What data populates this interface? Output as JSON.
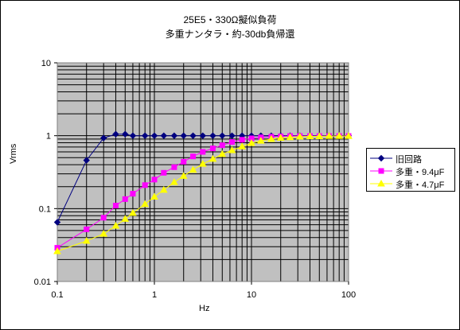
{
  "chart_data": {
    "type": "line",
    "title_lines": [
      "25E5・330Ω擬似負荷",
      "多重ナンタラ・約-30db負帰還"
    ],
    "xlabel": "Hz",
    "ylabel": "Vrms",
    "x_scale": "log",
    "y_scale": "log",
    "xlim": [
      0.1,
      100
    ],
    "ylim": [
      0.01,
      10
    ],
    "x_ticks": [
      "0.1",
      "1",
      "10",
      "100"
    ],
    "y_ticks": [
      "0.01",
      "0.1",
      "1",
      "10"
    ],
    "grid": true,
    "plot_background": "#c0c0c0",
    "legend_position": "right",
    "series": [
      {
        "name": "旧回路",
        "color": "#000080",
        "marker": "diamond",
        "points": [
          [
            0.1,
            0.065
          ],
          [
            0.2,
            0.46
          ],
          [
            0.3,
            0.93
          ],
          [
            0.4,
            1.05
          ],
          [
            0.5,
            1.05
          ],
          [
            0.6,
            1.0
          ],
          [
            0.8,
            1.0
          ],
          [
            1.0,
            1.0
          ],
          [
            1.25,
            1.0
          ],
          [
            1.6,
            1.0
          ],
          [
            2.0,
            1.0
          ],
          [
            2.5,
            1.0
          ],
          [
            3.15,
            1.0
          ],
          [
            4.0,
            1.0
          ],
          [
            5.0,
            1.0
          ],
          [
            6.3,
            1.0
          ],
          [
            8.0,
            1.0
          ],
          [
            10,
            1.0
          ],
          [
            12.5,
            1.0
          ],
          [
            16,
            1.0
          ],
          [
            20,
            1.0
          ],
          [
            25,
            1.0
          ],
          [
            31.5,
            1.0
          ],
          [
            40,
            1.0
          ],
          [
            50,
            1.0
          ],
          [
            63,
            1.0
          ],
          [
            80,
            1.0
          ],
          [
            100,
            1.0
          ]
        ]
      },
      {
        "name": "多重・9.4μF",
        "color": "#ff00ff",
        "marker": "square",
        "points": [
          [
            0.1,
            0.029
          ],
          [
            0.2,
            0.052
          ],
          [
            0.3,
            0.075
          ],
          [
            0.4,
            0.11
          ],
          [
            0.5,
            0.135
          ],
          [
            0.6,
            0.16
          ],
          [
            0.8,
            0.21
          ],
          [
            1.0,
            0.25
          ],
          [
            1.25,
            0.31
          ],
          [
            1.6,
            0.37
          ],
          [
            2.0,
            0.44
          ],
          [
            2.5,
            0.52
          ],
          [
            3.15,
            0.6
          ],
          [
            4.0,
            0.67
          ],
          [
            5.0,
            0.74
          ],
          [
            6.3,
            0.82
          ],
          [
            8.0,
            0.88
          ],
          [
            10,
            0.92
          ],
          [
            12.5,
            0.95
          ],
          [
            16,
            0.97
          ],
          [
            20,
            0.98
          ],
          [
            25,
            0.99
          ],
          [
            31.5,
            0.99
          ],
          [
            40,
            0.99
          ],
          [
            50,
            0.99
          ],
          [
            63,
            0.99
          ],
          [
            80,
            0.99
          ],
          [
            100,
            0.99
          ]
        ]
      },
      {
        "name": "多重・4.7μF",
        "color": "#ffff00",
        "marker": "triangle",
        "points": [
          [
            0.1,
            0.026
          ],
          [
            0.2,
            0.036
          ],
          [
            0.3,
            0.045
          ],
          [
            0.4,
            0.058
          ],
          [
            0.5,
            0.072
          ],
          [
            0.6,
            0.087
          ],
          [
            0.8,
            0.115
          ],
          [
            1.0,
            0.145
          ],
          [
            1.25,
            0.18
          ],
          [
            1.6,
            0.23
          ],
          [
            2.0,
            0.28
          ],
          [
            2.5,
            0.34
          ],
          [
            3.15,
            0.41
          ],
          [
            4.0,
            0.48
          ],
          [
            5.0,
            0.56
          ],
          [
            6.3,
            0.63
          ],
          [
            8.0,
            0.71
          ],
          [
            10,
            0.79
          ],
          [
            12.5,
            0.85
          ],
          [
            16,
            0.9
          ],
          [
            20,
            0.93
          ],
          [
            25,
            0.95
          ],
          [
            31.5,
            0.97
          ],
          [
            40,
            0.98
          ],
          [
            50,
            0.98
          ],
          [
            63,
            0.99
          ],
          [
            80,
            0.99
          ],
          [
            100,
            0.99
          ]
        ]
      }
    ]
  }
}
